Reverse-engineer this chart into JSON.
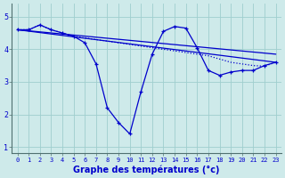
{
  "background_color": "#ceeaea",
  "plot_bg_color": "#ceeaea",
  "grid_color": "#9fcece",
  "line_color": "#0000cc",
  "xlabel": "Graphe des températures (°c)",
  "xlabel_fontsize": 7.0,
  "xlim": [
    -0.5,
    23.5
  ],
  "ylim": [
    0.8,
    5.4
  ],
  "yticks": [
    1,
    2,
    3,
    4,
    5
  ],
  "xticks": [
    0,
    1,
    2,
    3,
    4,
    5,
    6,
    7,
    8,
    9,
    10,
    11,
    12,
    13,
    14,
    15,
    16,
    17,
    18,
    19,
    20,
    21,
    22,
    23
  ],
  "main_x": [
    0,
    1,
    2,
    3,
    4,
    5,
    6,
    7,
    8,
    9,
    10,
    11,
    12,
    13,
    14,
    15,
    16,
    17,
    18,
    19,
    20,
    21,
    22,
    23
  ],
  "main_y": [
    4.6,
    4.6,
    4.75,
    4.6,
    4.5,
    4.4,
    4.2,
    3.55,
    2.2,
    1.75,
    1.4,
    2.7,
    3.85,
    4.55,
    4.7,
    4.65,
    4.05,
    3.35,
    3.2,
    3.3,
    3.35,
    3.35,
    3.5,
    3.6
  ],
  "dot_x": [
    0,
    1,
    2,
    3,
    4,
    5,
    6,
    7,
    8,
    9,
    10,
    11,
    12,
    13,
    14,
    15,
    16,
    17,
    18,
    19,
    20,
    21,
    22,
    23
  ],
  "dot_y": [
    4.6,
    4.6,
    4.75,
    4.6,
    4.5,
    4.4,
    4.35,
    4.3,
    4.25,
    4.2,
    4.15,
    4.1,
    4.05,
    4.0,
    3.95,
    3.9,
    3.85,
    3.8,
    3.7,
    3.6,
    3.55,
    3.5,
    3.48,
    3.6
  ],
  "trend1_x": [
    0,
    23
  ],
  "trend1_y": [
    4.6,
    3.6
  ],
  "trend2_x": [
    0,
    23
  ],
  "trend2_y": [
    4.6,
    3.85
  ]
}
